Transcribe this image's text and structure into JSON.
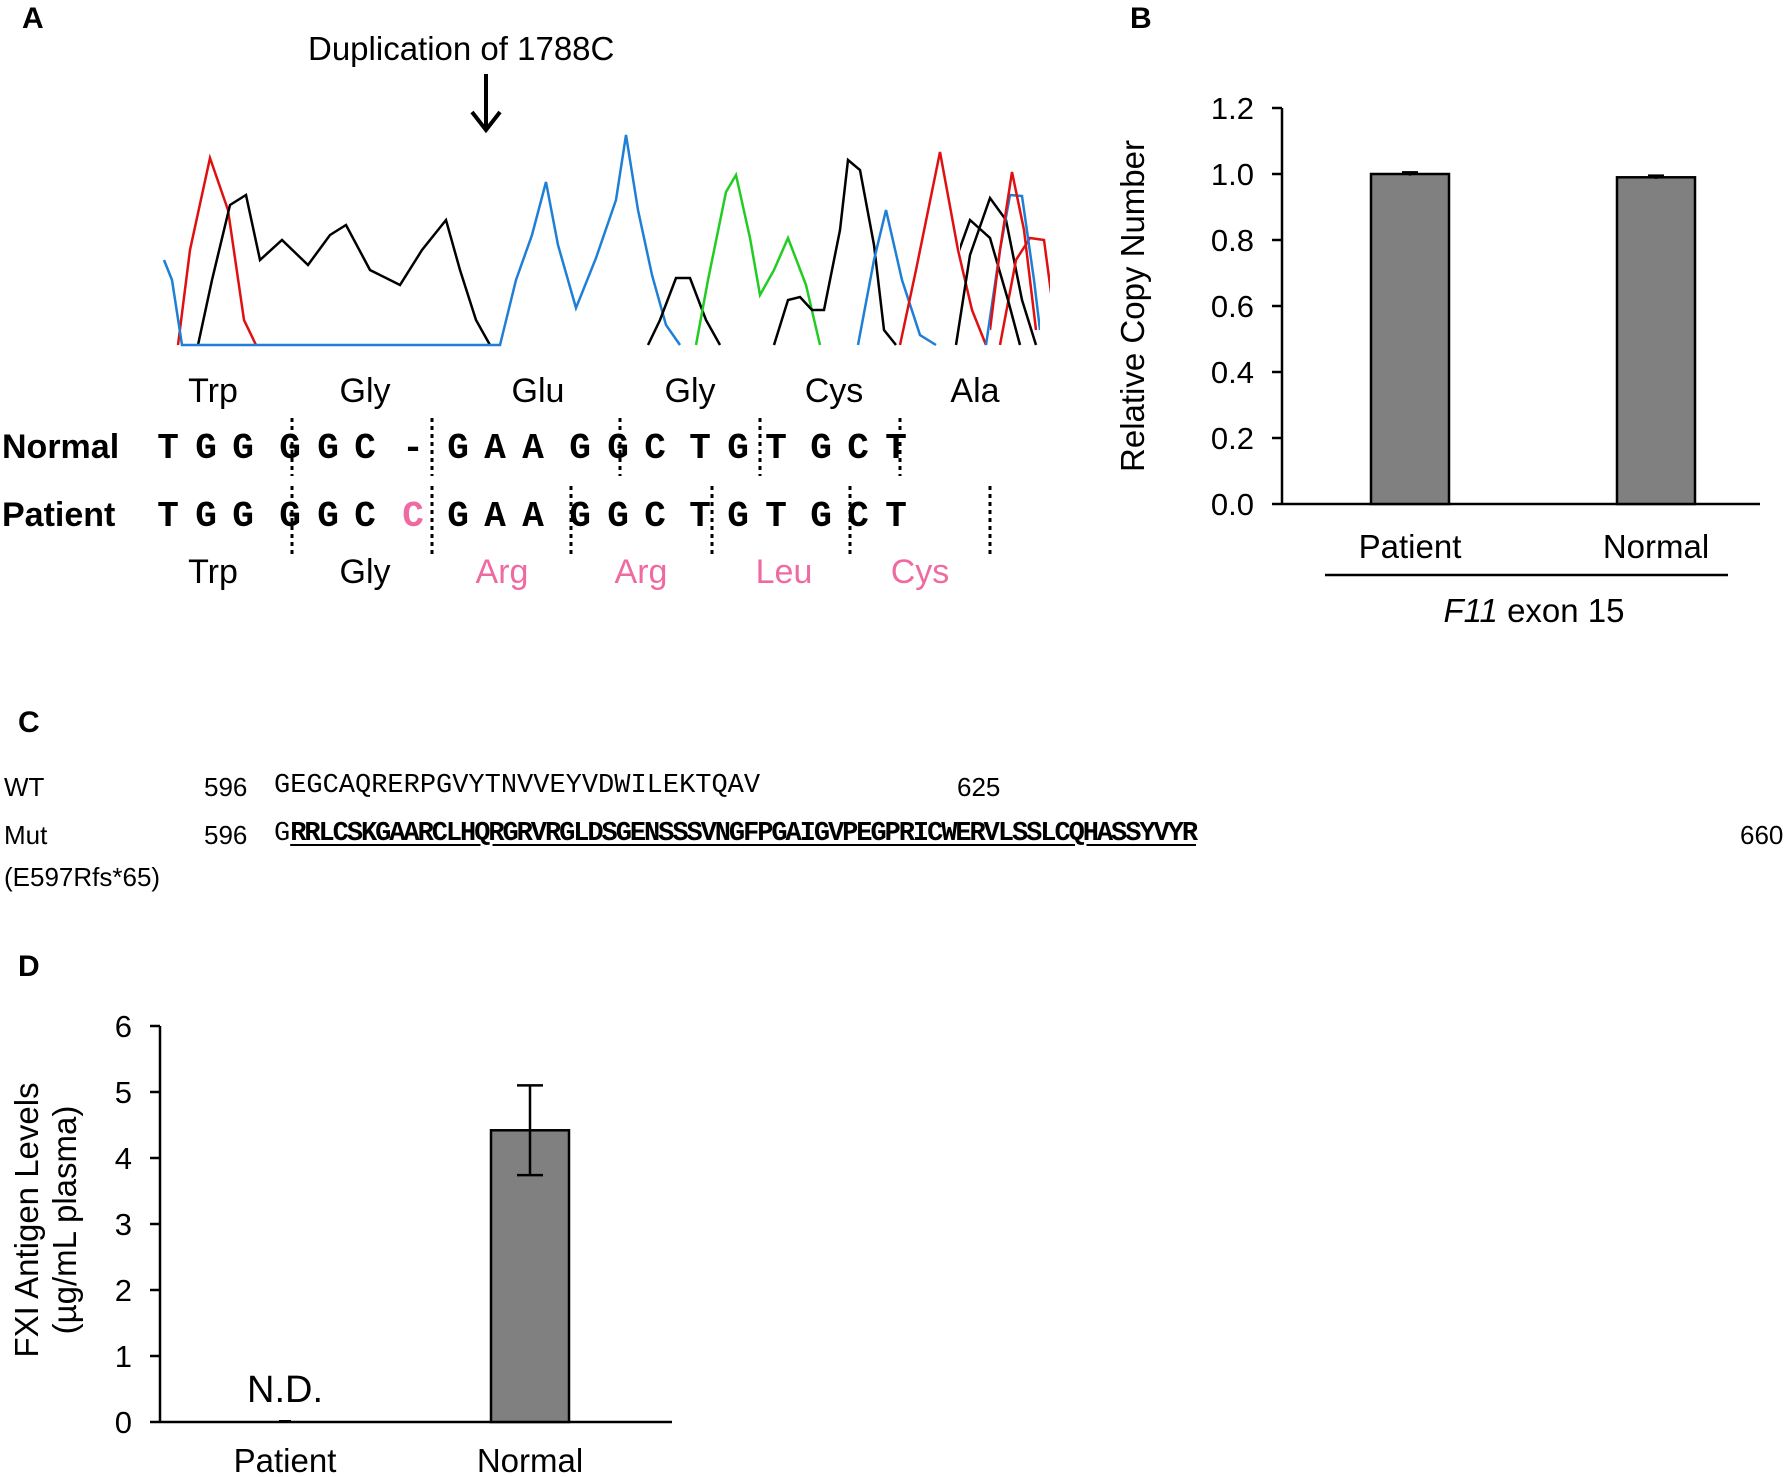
{
  "panels": {
    "a": "A",
    "b": "B",
    "c": "C",
    "d": "D"
  },
  "panel_a": {
    "annotation": "Duplication of 1788C",
    "top_aa": [
      "Trp",
      "Gly",
      "Glu",
      "Gly",
      "Cys",
      "Ala"
    ],
    "normal_label": "Normal",
    "patient_label": "Patient",
    "normal_bases": [
      "T",
      "G",
      "G",
      "G",
      "G",
      "C",
      "-",
      "G",
      "A",
      "A",
      "G",
      "G",
      "C",
      "T",
      "G",
      "T",
      "G",
      "C",
      "T"
    ],
    "patient_bases": [
      "T",
      "G",
      "G",
      "G",
      "G",
      "C",
      "C",
      "G",
      "A",
      "A",
      "G",
      "G",
      "C",
      "T",
      "G",
      "T",
      "G",
      "C",
      "T"
    ],
    "bottom_aa": [
      "Trp",
      "Gly",
      "Arg",
      "Arg",
      "Leu",
      "Cys"
    ],
    "colors": {
      "A": "#22cc22",
      "C": "#1e7fd6",
      "G": "#000000",
      "T": "#e01010",
      "mutation": "#ef6aa1"
    }
  },
  "panel_c": {
    "wt_label": "WT",
    "wt_start": "596",
    "wt_seq": "GEGCAQRERPGVYTNVVEYVDWILEKTQAV",
    "wt_end": "625",
    "mut_label": "Mut",
    "mut_sublabel": "(E597Rfs*65)",
    "mut_start": "596",
    "mut_first": "G",
    "mut_seq": "RRLCSKGAARCLHQRGRVRGLDSGENSSSVNGFPGAIGVPEGPRICWERVLSSLCQHASSYVYR",
    "mut_end": "660"
  },
  "chart_data": [
    {
      "type": "bar",
      "categories": [
        "Patient",
        "Normal"
      ],
      "values": [
        1.0,
        0.99
      ],
      "errors": [
        0.005,
        0.005
      ],
      "ylabel": "Relative Copy Number",
      "group_label_italic": "F11",
      "group_label_rest": " exon 15",
      "ylim": [
        0,
        1.2
      ],
      "yticks": [
        "0.0",
        "0.2",
        "0.4",
        "0.6",
        "0.8",
        "1.0",
        "1.2"
      ],
      "bar_color": "#808080"
    },
    {
      "type": "bar",
      "categories": [
        "Patient",
        "Normal"
      ],
      "values": [
        0,
        4.42
      ],
      "errors": [
        0,
        0.68
      ],
      "annotation": "N.D.",
      "ylabel_line1": "FXI Antigen Levels",
      "ylabel_line2": "(µg/mL plasma)",
      "ylim": [
        0,
        6
      ],
      "yticks": [
        "0",
        "1",
        "2",
        "3",
        "4",
        "5",
        "6"
      ],
      "bar_color": "#808080"
    }
  ]
}
